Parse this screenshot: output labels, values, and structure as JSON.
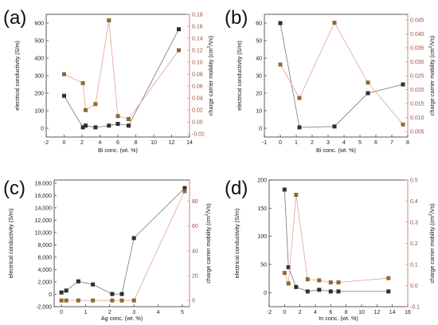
{
  "colors": {
    "conductivity": "#2f2f2f",
    "mobility": "#8c6a33",
    "mobility_line": "#e2a394",
    "conductivity_line": "#777777",
    "right_axis": "#c98c7e"
  },
  "chart_data": [
    {
      "panel_label": "(a)",
      "type": "line",
      "xlabel": "Bi conc. (wt. %)",
      "ylabel": "electrical conductivity (S/m)",
      "ylabel_right": "charge carrier mobility (cm",
      "ylabel_right_sup": "2",
      "ylabel_right_tail": "/Vs)",
      "xlim": [
        -2,
        14
      ],
      "ylim": [
        -50,
        650
      ],
      "ylim_right": [
        -0.025,
        0.18
      ],
      "x_ticks": [
        "-2",
        "0",
        "2",
        "4",
        "6",
        "8",
        "10",
        "12",
        "14"
      ],
      "y_ticks": [
        "0",
        "100",
        "200",
        "300",
        "400",
        "500",
        "600"
      ],
      "y_ticks_right": [
        "-0.02",
        "0.00",
        "0.02",
        "0.04",
        "0.06",
        "0.08",
        "0.10",
        "0.12",
        "0.14",
        "0.16",
        "0.18"
      ],
      "series": [
        {
          "axis": "left",
          "x": [
            0,
            2.1,
            2.4,
            3.5,
            5,
            6,
            7.2,
            12.8
          ],
          "y": [
            185,
            5,
            15,
            5,
            15,
            25,
            15,
            565
          ]
        },
        {
          "axis": "right",
          "x": [
            0,
            2.1,
            2.4,
            3.5,
            5,
            6,
            7.2,
            12.8
          ],
          "y": [
            0.08,
            0.065,
            0.02,
            0.03,
            0.17,
            0.01,
            0.005,
            0.12
          ]
        }
      ]
    },
    {
      "panel_label": "(b)",
      "type": "line",
      "xlabel": "Bi conc. (wt. %)",
      "ylabel": "electrical conductivity (S/m)",
      "ylabel_right": "charge carrier mobility (cm",
      "ylabel_right_sup": "2",
      "ylabel_right_tail": "/Vs)",
      "xlim": [
        -1,
        8
      ],
      "ylim": [
        -5,
        65
      ],
      "ylim_right": [
        0.003,
        0.047
      ],
      "x_ticks": [
        "-1",
        "0",
        "1",
        "2",
        "3",
        "4",
        "5",
        "6",
        "7",
        "8"
      ],
      "y_ticks": [
        "0",
        "10",
        "20",
        "30",
        "40",
        "50",
        "60"
      ],
      "y_ticks_right": [
        "0.005",
        "0.010",
        "0.015",
        "0.020",
        "0.025",
        "0.030",
        "0.035",
        "0.040",
        "0.045"
      ],
      "series": [
        {
          "axis": "left",
          "x": [
            0,
            1.2,
            3.4,
            5.5,
            7.7
          ],
          "y": [
            60,
            0.5,
            1,
            20,
            25
          ]
        },
        {
          "axis": "right",
          "x": [
            0,
            1.2,
            3.4,
            5.5,
            7.7
          ],
          "y": [
            0.029,
            0.017,
            0.044,
            0.0225,
            0.0075
          ]
        }
      ]
    },
    {
      "panel_label": "(c)",
      "type": "line",
      "xlabel": "Ag conc. (wt. %)",
      "ylabel": "electrical conductivity (S/m)",
      "ylabel_right": "charge carrier mobility (cm",
      "ylabel_right_sup": "2",
      "ylabel_right_tail": "/Vs)",
      "xlim": [
        -0.3,
        5.3
      ],
      "ylim": [
        -2000,
        18500
      ],
      "ylim_right": [
        -5,
        97
      ],
      "x_ticks": [
        "0",
        "1",
        "2",
        "3",
        "4",
        "5"
      ],
      "y_ticks": [
        "-2,000",
        "0",
        "2,000",
        "4,000",
        "6,000",
        "8,000",
        "10,000",
        "12,000",
        "14,000",
        "16,000",
        "18,000"
      ],
      "y_ticks_right": [
        "0",
        "20",
        "40",
        "60",
        "80"
      ],
      "series": [
        {
          "axis": "left",
          "x": [
            0,
            0.2,
            0.7,
            1.3,
            2.1,
            2.5,
            3.0,
            5.1
          ],
          "y": [
            300,
            600,
            2100,
            1600,
            50,
            50,
            9100,
            17200
          ]
        },
        {
          "axis": "right",
          "x": [
            0,
            0.2,
            0.7,
            1.3,
            2.1,
            2.5,
            3.0,
            5.1
          ],
          "y": [
            0,
            0,
            0,
            0,
            0,
            0,
            0,
            88
          ]
        }
      ]
    },
    {
      "panel_label": "(d)",
      "type": "line",
      "xlabel": "In conc. (wt. %)",
      "ylabel": "electrical conductivity (S/m)",
      "ylabel_right": "charge carrier mobility (cm",
      "ylabel_right_sup": "2",
      "ylabel_right_tail": "/Vs)",
      "xlim": [
        -2,
        16
      ],
      "ylim": [
        -25,
        200
      ],
      "ylim_right": [
        -0.1,
        0.5
      ],
      "x_ticks": [
        "-2",
        "0",
        "2",
        "4",
        "6",
        "8",
        "10",
        "12",
        "14",
        "16"
      ],
      "y_ticks": [
        "0",
        "50",
        "100",
        "150",
        "200"
      ],
      "y_ticks_right": [
        "-0.1",
        "0.0",
        "0.1",
        "0.2",
        "0.3",
        "0.4",
        "0.5"
      ],
      "series": [
        {
          "axis": "left",
          "x": [
            0,
            0.5,
            1.5,
            3,
            4.5,
            6,
            7,
            13.5
          ],
          "y": [
            183,
            45,
            10,
            2,
            5,
            2,
            2,
            2
          ]
        },
        {
          "axis": "right",
          "x": [
            0,
            0.5,
            1.5,
            3,
            4.5,
            6,
            7,
            13.5
          ],
          "y": [
            0.06,
            0.01,
            0.43,
            0.03,
            0.025,
            0.015,
            0.015,
            0.035
          ]
        }
      ]
    }
  ]
}
